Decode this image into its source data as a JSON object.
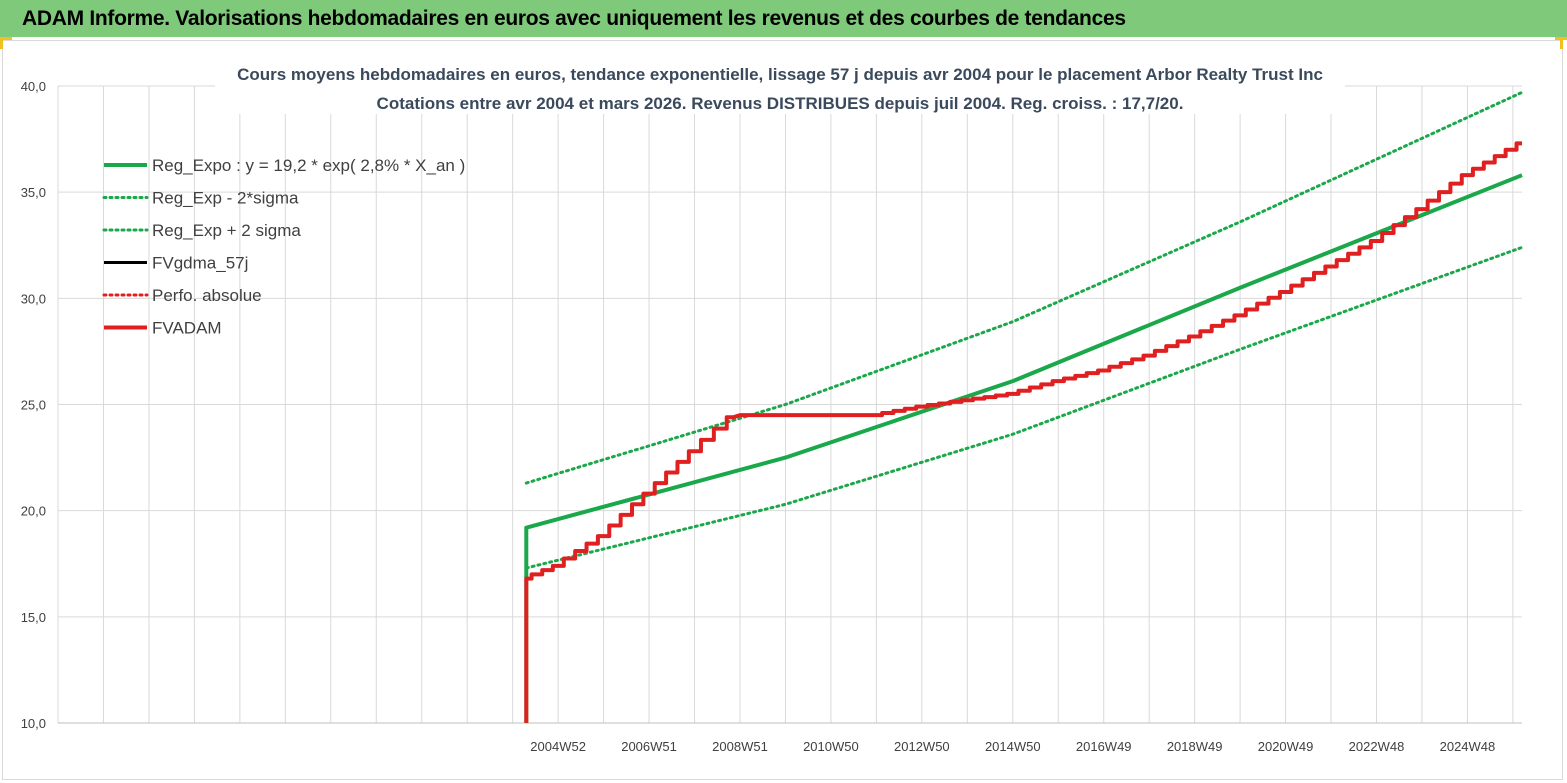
{
  "banner": {
    "title": "ADAM Informe. Valorisations hebdomadaires en euros avec uniquement les revenus et des courbes de tendances"
  },
  "chart_data": {
    "type": "line",
    "title": "Cours moyens hebdomadaires en euros, tendance exponentielle, lissage 57 j depuis avr 2004 pour le placement Arbor Realty Trust Inc",
    "subtitle": "Cotations entre avr 2004 et mars 2026.  Revenus DISTRIBUES depuis juil 2004.  Reg. croiss. : 17,7/20.",
    "xlabel": "",
    "ylabel": "",
    "ylim": [
      10,
      40
    ],
    "yticks": [
      "10,0",
      "15,0",
      "20,0",
      "25,0",
      "30,0",
      "35,0",
      "40,0"
    ],
    "xlim": [
      1994.0,
      2026.2
    ],
    "xticks": [
      {
        "x": 2005.0,
        "label": "2004W52"
      },
      {
        "x": 2007.0,
        "label": "2006W51"
      },
      {
        "x": 2009.0,
        "label": "2008W51"
      },
      {
        "x": 2011.0,
        "label": "2010W50"
      },
      {
        "x": 2013.0,
        "label": "2012W50"
      },
      {
        "x": 2015.0,
        "label": "2014W50"
      },
      {
        "x": 2017.0,
        "label": "2016W49"
      },
      {
        "x": 2019.0,
        "label": "2018W49"
      },
      {
        "x": 2021.0,
        "label": "2020W49"
      },
      {
        "x": 2023.0,
        "label": "2022W48"
      },
      {
        "x": 2025.0,
        "label": "2024W48"
      }
    ],
    "grid": true,
    "legend_position": "top-left",
    "series": [
      {
        "name": "Reg_Expo : y = 19,2 * exp( 2,8% *  X_an )",
        "color": "#1aa84a",
        "style": "solid",
        "points": [
          [
            2004.3,
            10.0
          ],
          [
            2004.3,
            19.2
          ],
          [
            2010.0,
            22.5
          ],
          [
            2015.0,
            26.1
          ],
          [
            2020.0,
            30.5
          ],
          [
            2026.2,
            35.8
          ]
        ]
      },
      {
        "name": "Reg_Exp - 2*sigma",
        "color": "#1aa84a",
        "style": "dotted",
        "points": [
          [
            2004.3,
            17.3
          ],
          [
            2010.0,
            20.3
          ],
          [
            2015.0,
            23.6
          ],
          [
            2020.0,
            27.6
          ],
          [
            2026.2,
            32.4
          ]
        ]
      },
      {
        "name": "Reg_Exp + 2 sigma",
        "color": "#1aa84a",
        "style": "dotted",
        "points": [
          [
            2004.3,
            21.3
          ],
          [
            2010.0,
            25.0
          ],
          [
            2015.0,
            28.9
          ],
          [
            2020.0,
            33.6
          ],
          [
            2026.2,
            39.7
          ]
        ]
      },
      {
        "name": "FVgdma_57j",
        "color": "#000000",
        "style": "solid",
        "points": []
      },
      {
        "name": "Perfo. absolue",
        "color": "#e02020",
        "style": "dotted",
        "points": []
      },
      {
        "name": "FVADAM",
        "color": "#e02020",
        "style": "solid",
        "points": [
          [
            2004.3,
            10.0
          ],
          [
            2004.3,
            16.8
          ],
          [
            2005.0,
            17.4
          ],
          [
            2006.0,
            18.8
          ],
          [
            2007.0,
            20.8
          ],
          [
            2008.0,
            22.8
          ],
          [
            2008.85,
            24.4
          ],
          [
            2009.0,
            24.5
          ],
          [
            2012.0,
            24.5
          ],
          [
            2013.0,
            24.9
          ],
          [
            2014.0,
            25.2
          ],
          [
            2015.0,
            25.5
          ],
          [
            2016.0,
            26.1
          ],
          [
            2017.0,
            26.6
          ],
          [
            2018.0,
            27.3
          ],
          [
            2019.0,
            28.2
          ],
          [
            2020.0,
            29.2
          ],
          [
            2021.0,
            30.3
          ],
          [
            2022.0,
            31.5
          ],
          [
            2023.0,
            32.7
          ],
          [
            2024.0,
            34.2
          ],
          [
            2025.0,
            35.8
          ],
          [
            2026.2,
            37.3
          ]
        ]
      }
    ],
    "colors": {
      "green": "#1aa84a",
      "red": "#e02020",
      "banner": "#7fc97a"
    }
  }
}
